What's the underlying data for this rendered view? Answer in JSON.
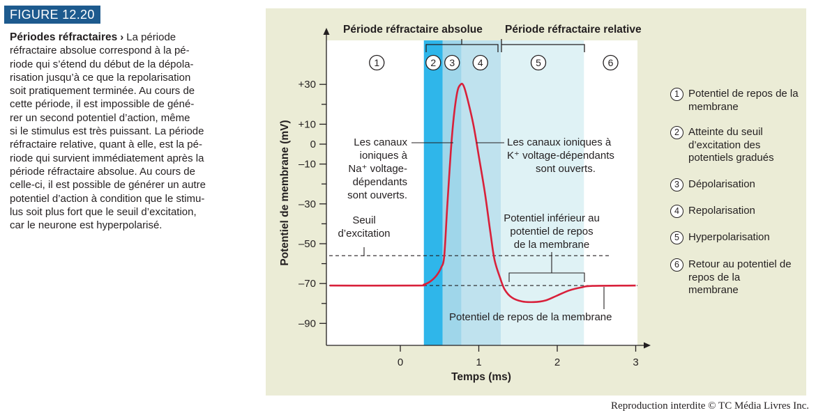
{
  "figure_label": "FIGURE 12.20",
  "caption": {
    "title": "Périodes réfractaires",
    "arrow": "›",
    "lines": [
      "La période",
      "réfractaire absolue correspond à la pé-",
      "riode qui s’étend du début de la dépola-",
      "risation jusqu’à ce que la repolarisation",
      "soit pratiquement terminée. Au cours de",
      "cette période, il est impossible de géné-",
      "rer un second potentiel d’action, même",
      "si le stimulus est très puissant. La période",
      "réfractaire relative, quant à elle, est la pé-",
      "riode qui survient immédiatement après la",
      "période réfractaire absolue. Au cours de",
      "celle-ci, il est possible de générer un autre",
      "potentiel d’action à condition que le stimu-",
      "lus soit plus fort que le seuil d’excitation,",
      "car le neurone est hyperpolarisé."
    ]
  },
  "colors": {
    "badge": "#1d5a8e",
    "panel": "#ebecd6",
    "depolarization_band": "#2fb6ea",
    "repolarization_band": "#9fd6ea",
    "repolarization_band_2": "#bfe2ee",
    "hyperpolarization_band": "#dff2f5",
    "curve": "#d8203a"
  },
  "chart_data": {
    "type": "line",
    "xlabel": "Temps (ms)",
    "ylabel": "Potentiel de membrane (mV)",
    "xlim": [
      -0.9,
      3.0
    ],
    "ylim": [
      -100,
      45
    ],
    "x_ticks": [
      "0",
      "1",
      "2",
      "3"
    ],
    "x_tick_values": [
      0,
      1,
      2,
      3
    ],
    "y_ticks": [
      "+30",
      "+10",
      "0",
      "–10",
      "–30",
      "–50",
      "–70",
      "–90"
    ],
    "y_tick_values": [
      30,
      10,
      0,
      -10,
      -30,
      -50,
      -70,
      -90
    ],
    "threshold_mV": -56,
    "resting_mV": -71,
    "x": [
      -0.9,
      0.2,
      0.3,
      0.38,
      0.46,
      0.52,
      0.56,
      0.6,
      0.66,
      0.72,
      0.77,
      0.81,
      0.86,
      0.93,
      1.0,
      1.08,
      1.15,
      1.2,
      1.27,
      1.33,
      1.42,
      1.55,
      1.7,
      1.85,
      2.0,
      2.15,
      2.3,
      2.45,
      3.0
    ],
    "y": [
      -71,
      -71,
      -70.5,
      -69,
      -66,
      -62,
      -56,
      -30,
      5,
      25,
      30,
      29,
      22,
      10,
      -6,
      -25,
      -45,
      -58,
      -67,
      -73,
      -77,
      -79,
      -79.3,
      -78.5,
      -76,
      -73.5,
      -72,
      -71.2,
      -71
    ],
    "bands": [
      {
        "number": "1",
        "x_start": -0.9,
        "x_end": 0.3
      },
      {
        "number": "2",
        "x_start": 0.3,
        "x_end": 0.54
      },
      {
        "number": "3",
        "x_start": 0.54,
        "x_end": 0.78
      },
      {
        "number": "4",
        "x_start": 0.78,
        "x_end": 1.28
      },
      {
        "number": "5",
        "x_start": 1.28,
        "x_end": 2.34
      },
      {
        "number": "6",
        "x_start": 2.34,
        "x_end": 3.0
      }
    ],
    "annotations": {
      "absolute_period": "Période réfractaire absolue",
      "relative_period": "Période réfractaire relative",
      "threshold_label_1": "Seuil",
      "threshold_label_2": "d’excitation",
      "na_label": [
        "Les canaux",
        "ioniques à",
        "Na⁺ voltage-",
        "dépendants",
        "sont ouverts."
      ],
      "k_label": [
        "Les canaux ioniques à",
        "K⁺ voltage-dépendants",
        "sont ouverts."
      ],
      "below_rest_label": [
        "Potentiel inférieur au",
        "potentiel de repos",
        "de la membrane"
      ],
      "rest_label": "Potentiel de repos de la membrane"
    }
  },
  "legend": [
    {
      "number": "1",
      "text": "Potentiel de repos de la membrane"
    },
    {
      "number": "2",
      "text": "Atteinte du seuil d’excitation des potentiels gradués"
    },
    {
      "number": "3",
      "text": "Dépolarisation"
    },
    {
      "number": "4",
      "text": "Repolarisation"
    },
    {
      "number": "5",
      "text": "Hyperpolarisation"
    },
    {
      "number": "6",
      "text": "Retour au potentiel de repos de la membrane"
    }
  ],
  "copyright": "Reproduction interdite © TC Média Livres Inc."
}
